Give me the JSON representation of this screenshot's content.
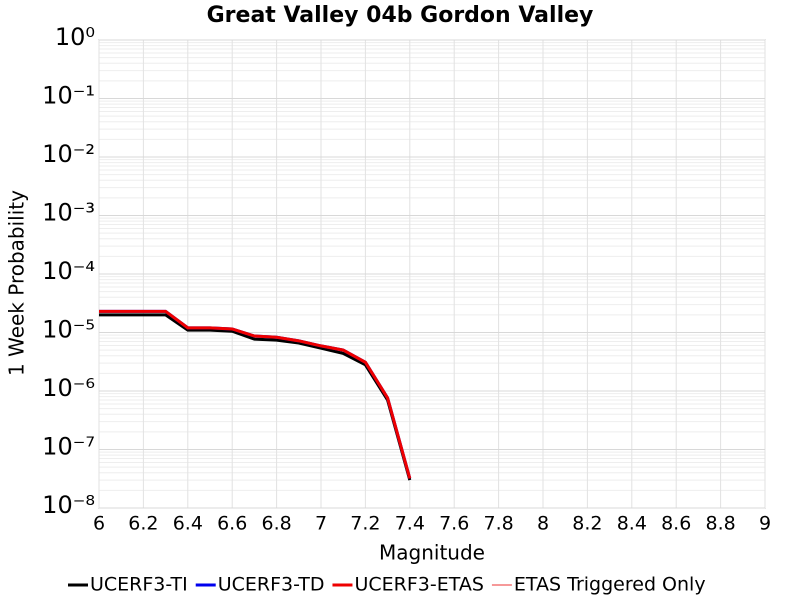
{
  "chart_data": {
    "type": "line",
    "title": "Great Valley 04b Gordon Valley",
    "x_label": "Magnitude",
    "y_label": "1 Week Probability",
    "x": [
      6.0,
      6.1,
      6.2,
      6.3,
      6.4,
      6.5,
      6.6,
      6.7,
      6.8,
      6.9,
      7.0,
      7.1,
      7.2,
      7.3,
      7.4
    ],
    "series": [
      {
        "name": "UCERF3-TI",
        "color": "#000000",
        "width": 3,
        "values": [
          2e-05,
          2e-05,
          2e-05,
          2e-05,
          1.1e-05,
          1.1e-05,
          1.05e-05,
          7.7e-06,
          7.4e-06,
          6.6e-06,
          5.4e-06,
          4.4e-06,
          2.8e-06,
          7e-07,
          3e-08
        ]
      },
      {
        "name": "UCERF3-TD",
        "color": "#0000ee",
        "width": 3,
        "values": [
          2.3e-05,
          2.3e-05,
          2.3e-05,
          2.3e-05,
          1.2e-05,
          1.2e-05,
          1.15e-05,
          8.7e-06,
          8.3e-06,
          7.2e-06,
          5.9e-06,
          5e-06,
          3.1e-06,
          7.6e-07,
          3.2e-08
        ]
      },
      {
        "name": "UCERF3-ETAS",
        "color": "#ee0000",
        "width": 3,
        "values": [
          2.3e-05,
          2.3e-05,
          2.3e-05,
          2.3e-05,
          1.2e-05,
          1.2e-05,
          1.15e-05,
          8.7e-06,
          8.3e-06,
          7.2e-06,
          5.9e-06,
          5e-06,
          3.1e-06,
          7.6e-07,
          3.2e-08
        ]
      },
      {
        "name": "ETAS Triggered Only",
        "color": "#ee3333",
        "width": 1,
        "values": [
          null,
          null,
          null,
          null,
          null,
          null,
          null,
          null,
          null,
          null,
          null,
          null,
          null,
          null,
          null
        ]
      }
    ],
    "xlim": [
      6,
      9
    ],
    "xticks": [
      6,
      6.2,
      6.4,
      6.6,
      6.8,
      7,
      7.2,
      7.4,
      7.6,
      7.8,
      8,
      8.2,
      8.4,
      8.6,
      8.8,
      9
    ],
    "ylim": [
      1e-08,
      1
    ],
    "yscale": "log",
    "yticks": [
      {
        "value": 1,
        "label": "10⁰"
      },
      {
        "value": 0.1,
        "label": "10⁻¹"
      },
      {
        "value": 0.01,
        "label": "10⁻²"
      },
      {
        "value": 0.001,
        "label": "10⁻³"
      },
      {
        "value": 0.0001,
        "label": "10⁻⁴"
      },
      {
        "value": 1e-05,
        "label": "10⁻⁵"
      },
      {
        "value": 1e-06,
        "label": "10⁻⁶"
      },
      {
        "value": 1e-07,
        "label": "10⁻⁷"
      },
      {
        "value": 1e-08,
        "label": "10⁻⁸"
      }
    ],
    "grid": true,
    "legend": "bottom"
  }
}
